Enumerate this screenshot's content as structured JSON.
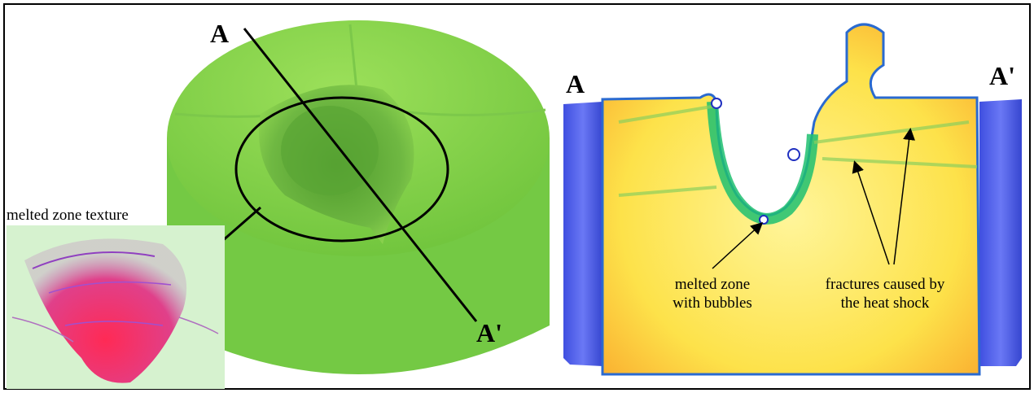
{
  "left_panel": {
    "label_a": "A",
    "label_a_prime": "A'",
    "inset_label": "melted zone texture"
  },
  "right_panel": {
    "label_a": "A",
    "label_a_prime": "A'",
    "annotations": [
      {
        "lines": [
          "melted zone",
          "with bubbles"
        ]
      },
      {
        "lines": [
          "fractures caused by",
          "the heat shock"
        ]
      }
    ]
  }
}
